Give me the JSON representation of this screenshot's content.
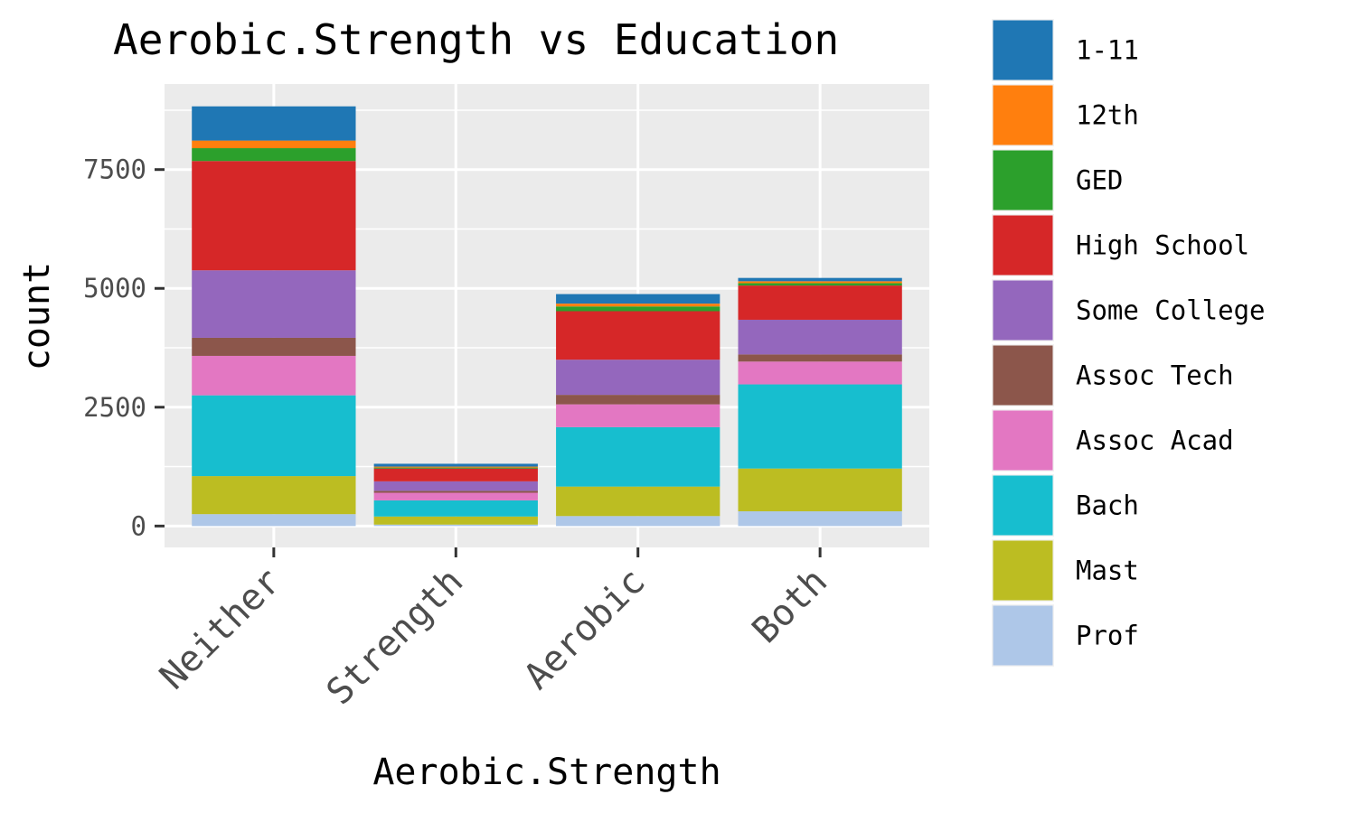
{
  "chart_data": {
    "type": "bar",
    "stacked": true,
    "title": "Aerobic.Strength vs Education",
    "xlabel": "Aerobic.Strength",
    "ylabel": "count",
    "ylim": [
      -450,
      9300
    ],
    "yticks": [
      0,
      2500,
      5000,
      7500
    ],
    "ytick_labels": [
      "0",
      "2500",
      "5000",
      "7500"
    ],
    "categories": [
      "Neither",
      "Strength",
      "Aerobic",
      "Both"
    ],
    "grid": true,
    "legend_position": "right",
    "series": [
      {
        "name": "Prof",
        "color": "#aec7e8",
        "values": [
          250,
          30,
          210,
          310
        ]
      },
      {
        "name": "Mast",
        "color": "#bcbd22",
        "values": [
          800,
          170,
          620,
          900
        ]
      },
      {
        "name": "Bach",
        "color": "#17becf",
        "values": [
          1700,
          340,
          1250,
          1770
        ]
      },
      {
        "name": "Assoc Acad",
        "color": "#e377c2",
        "values": [
          830,
          160,
          480,
          480
        ]
      },
      {
        "name": "Assoc Tech",
        "color": "#8c564b",
        "values": [
          380,
          40,
          200,
          150
        ]
      },
      {
        "name": "Some College",
        "color": "#9467bd",
        "values": [
          1420,
          200,
          740,
          730
        ]
      },
      {
        "name": "High School",
        "color": "#d62728",
        "values": [
          2300,
          270,
          1020,
          720
        ]
      },
      {
        "name": "GED",
        "color": "#2ca02c",
        "values": [
          270,
          20,
          100,
          50
        ]
      },
      {
        "name": "12th",
        "color": "#ff7f0e",
        "values": [
          160,
          20,
          60,
          40
        ]
      },
      {
        "name": "1-11",
        "color": "#1f77b4",
        "values": [
          720,
          60,
          200,
          70
        ]
      }
    ]
  },
  "legend_order": [
    "1-11",
    "12th",
    "GED",
    "High School",
    "Some College",
    "Assoc Tech",
    "Assoc Acad",
    "Bach",
    "Mast",
    "Prof"
  ]
}
